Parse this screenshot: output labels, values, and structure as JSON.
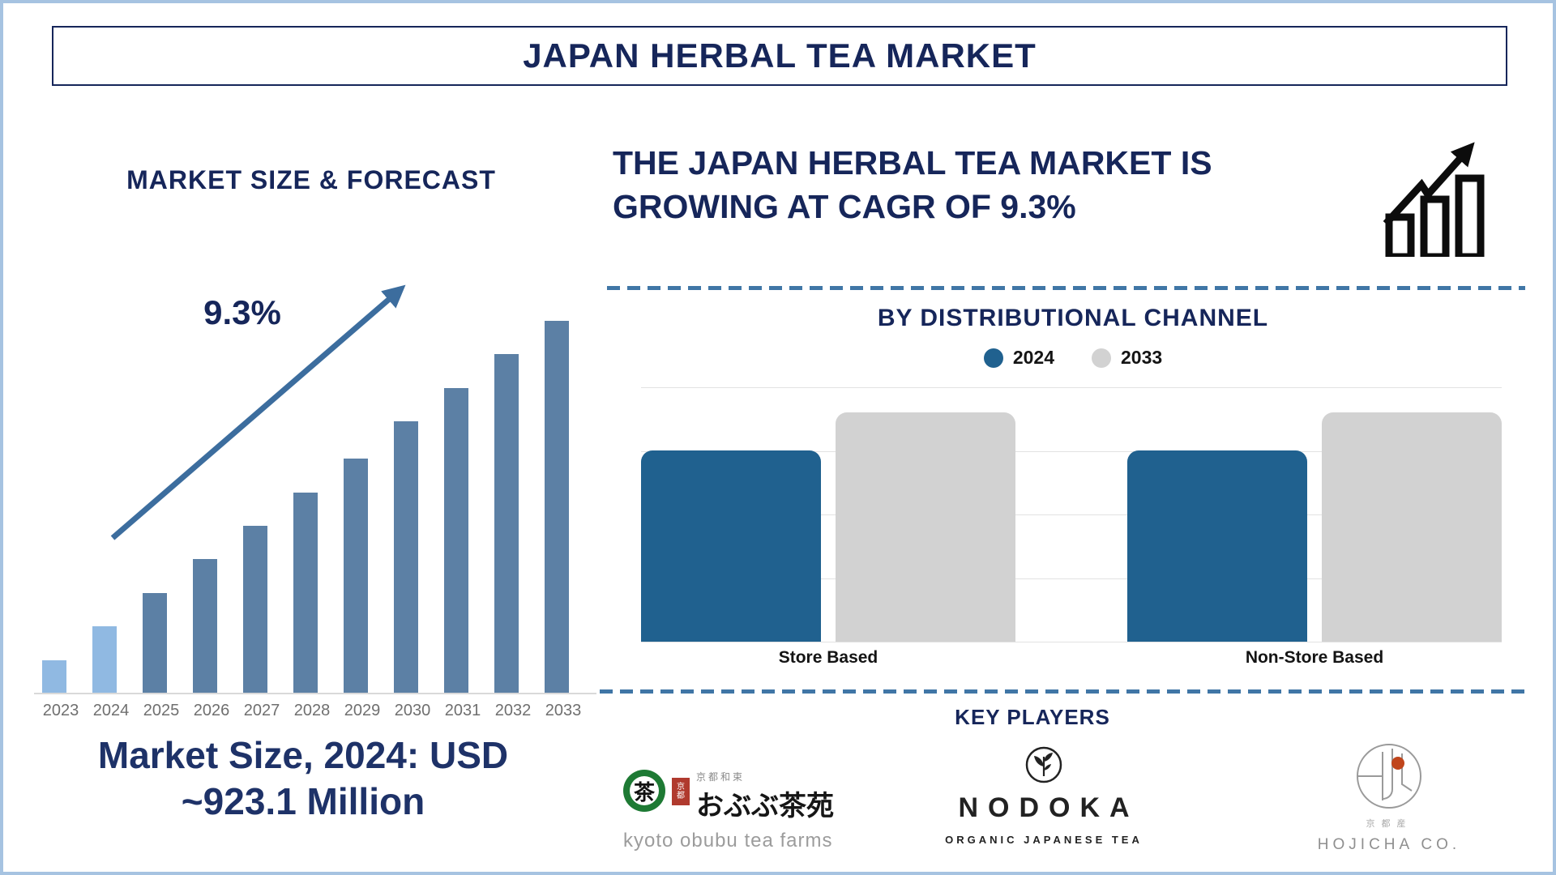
{
  "colors": {
    "navy": "#16265a",
    "steel": "#5c80a5",
    "light-blue": "#90b9e2",
    "arrow": "#3c6d9e",
    "chart-blue": "#20618f",
    "chart-gray": "#d2d2d2",
    "divider": "#4076a6",
    "axis": "#d9d9d9",
    "year-label": "#6f6f6f",
    "frame": "#a6c3e1",
    "black-text": "#141414",
    "logo-green": "#1e7a34",
    "seal-red": "#b03a2e",
    "hojicha-orange": "#c0451c",
    "logo-gray": "#979797"
  },
  "header": {
    "title": "JAPAN HERBAL TEA MARKET"
  },
  "left_panel": {
    "section_title": "MARKET SIZE & FORECAST",
    "cagr_label": "9.3%",
    "caption_line1": "Market Size, 2024: USD",
    "caption_line2": "~923.1 Million"
  },
  "right_panel": {
    "headline_line1": "THE JAPAN HERBAL TEA MARKET IS",
    "headline_line2": "GROWING AT CAGR OF 9.3%",
    "channel_section_title": "BY DISTRIBUTIONAL CHANNEL",
    "key_players_title": "KEY PLAYERS",
    "players": {
      "obubu": {
        "jp_region": "京都和束",
        "jp_name": "おぶぶ茶苑",
        "mark_glyph": "茶",
        "seal_char1": "京",
        "seal_char2": "都",
        "latin_name": "kyoto obubu tea farms"
      },
      "nodoka": {
        "name": "NODOKA",
        "tagline": "ORGANIC JAPANESE TEA"
      },
      "hojicha": {
        "jp_origin": "京都産",
        "name": "HOJICHA CO."
      }
    }
  },
  "chart_data": [
    {
      "id": "market-size-forecast",
      "type": "bar",
      "title": "MARKET SIZE & FORECAST",
      "categories": [
        "2023",
        "2024",
        "2025",
        "2026",
        "2027",
        "2028",
        "2029",
        "2030",
        "2031",
        "2032",
        "2033"
      ],
      "values_relative": [
        0.09,
        0.18,
        0.27,
        0.36,
        0.45,
        0.54,
        0.63,
        0.73,
        0.82,
        0.91,
        1.0
      ],
      "bar_colors": [
        "light-blue",
        "light-blue",
        "steel",
        "steel",
        "steel",
        "steel",
        "steel",
        "steel",
        "steel",
        "steel",
        "steel"
      ],
      "known_values": {
        "market_size_2024_usd_million": 923.1,
        "cagr_percent": 9.3
      },
      "annotation": "9.3%",
      "x_axis_labels_visible": true,
      "y_axis_visible": false,
      "grid": false
    },
    {
      "id": "by-distributional-channel",
      "type": "grouped_bar",
      "title": "BY DISTRIBUTIONAL CHANNEL",
      "categories": [
        "Store Based",
        "Non-Store Based"
      ],
      "series": [
        {
          "name": "2024",
          "color_key": "chart-blue",
          "values_relative": [
            0.75,
            0.75
          ]
        },
        {
          "name": "2033",
          "color_key": "chart-gray",
          "values_relative": [
            0.9,
            0.9
          ]
        }
      ],
      "gridline_count": 5,
      "legend_position": "top-center",
      "y_axis_visible": false,
      "grid": true
    }
  ]
}
